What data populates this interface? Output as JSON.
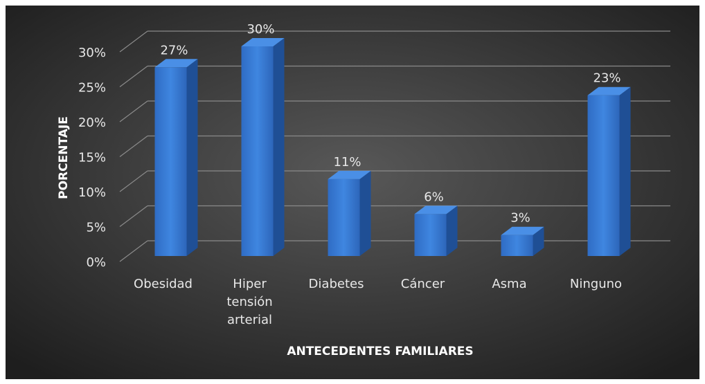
{
  "chart_data": {
    "type": "bar3d",
    "xlabel": "ANTECEDENTES FAMILIARES",
    "ylabel": "PORCENTAJE",
    "categories": [
      "Obesidad",
      "Hiper tensión arterial",
      "Diabetes",
      "Cáncer",
      "Asma",
      "Ninguno"
    ],
    "values": [
      27,
      30,
      11,
      6,
      3,
      23
    ],
    "value_labels": [
      "27%",
      "30%",
      "11%",
      "6%",
      "3%",
      "23%"
    ],
    "color": "#3a7bd5",
    "ylim": [
      0,
      30
    ],
    "yticks": [
      {
        "value": 0,
        "label": "0%"
      },
      {
        "value": 5,
        "label": "5%"
      },
      {
        "value": 10,
        "label": "10%"
      },
      {
        "value": 15,
        "label": "15%"
      },
      {
        "value": 20,
        "label": "20%"
      },
      {
        "value": 25,
        "label": "25%"
      },
      {
        "value": 30,
        "label": "30%"
      }
    ],
    "grid": true
  }
}
